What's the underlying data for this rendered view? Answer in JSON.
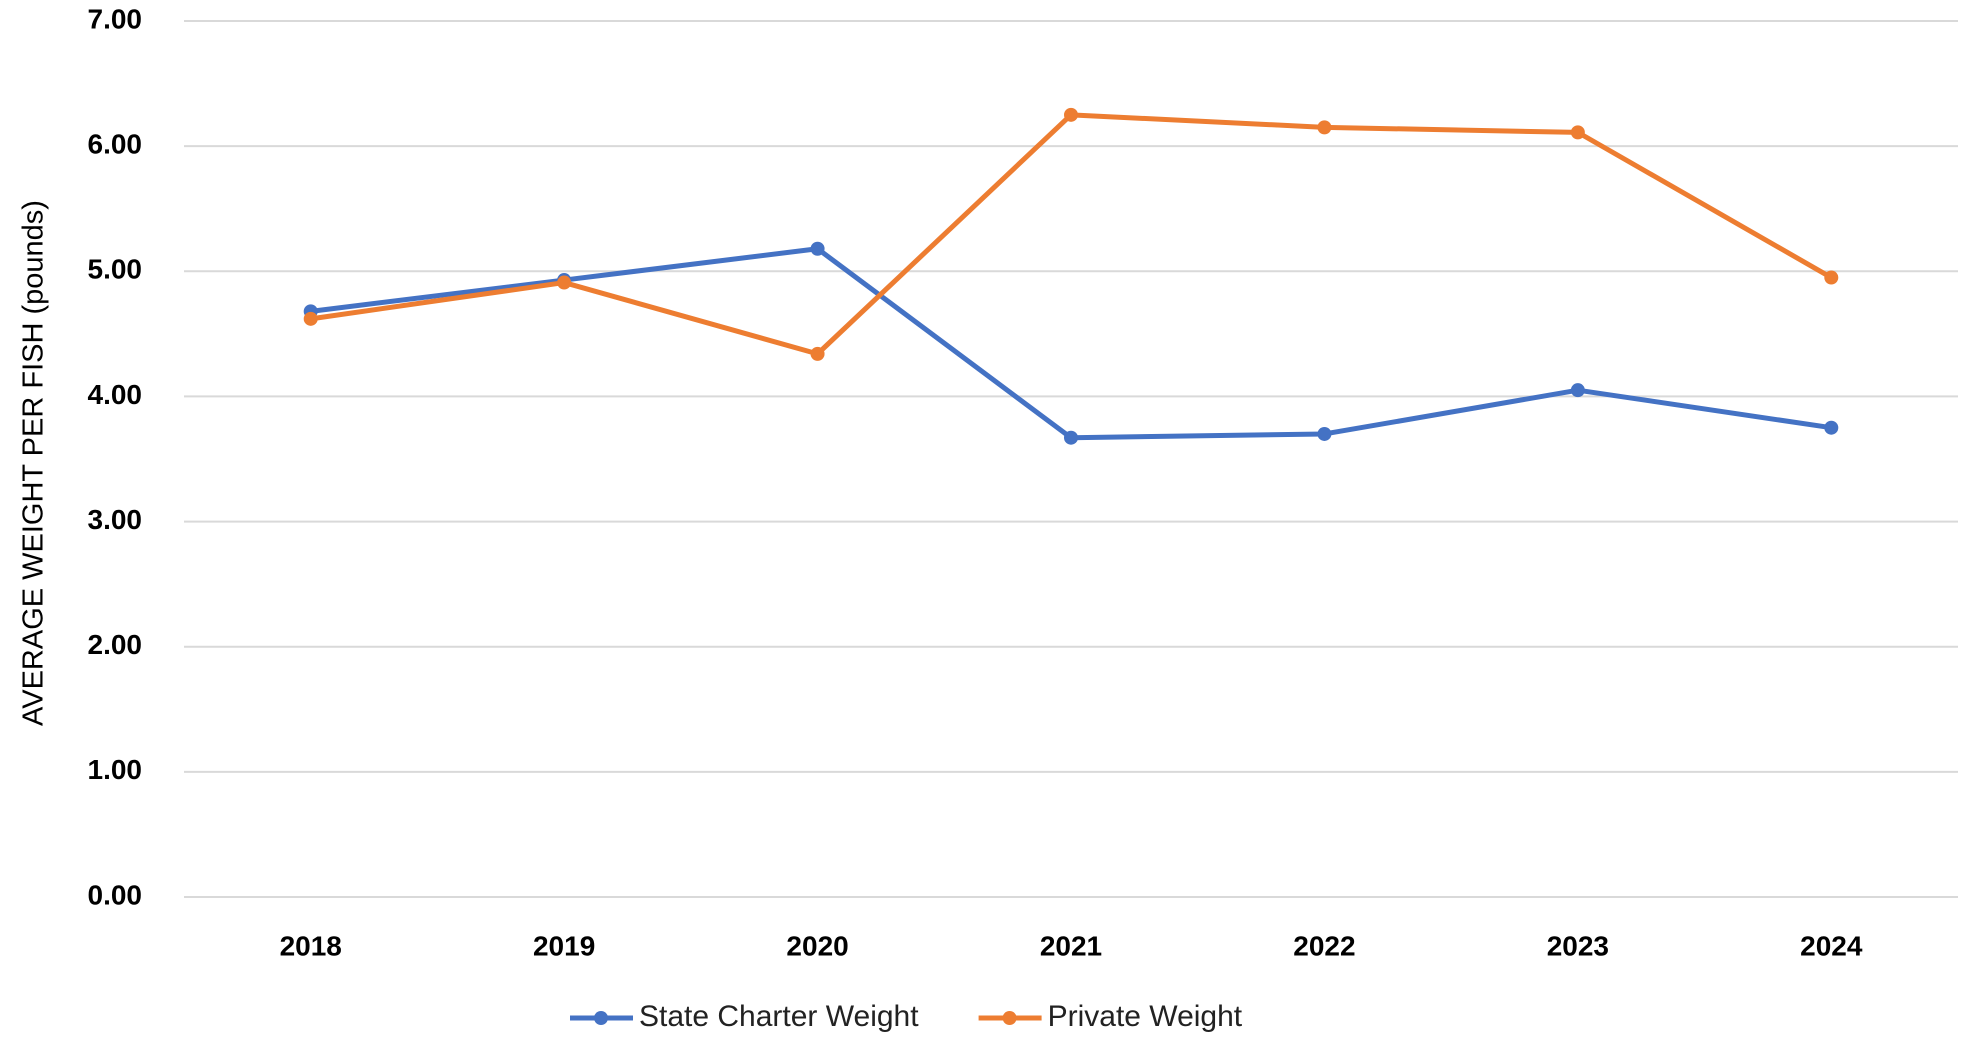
{
  "chart_data": {
    "type": "line",
    "y_label": "AVERAGE WEIGHT PER FISH (pounds)",
    "categories": [
      "2018",
      "2019",
      "2020",
      "2021",
      "2022",
      "2023",
      "2024"
    ],
    "series": [
      {
        "name": "State Charter Weight",
        "color": "#4472c4",
        "values": [
          4.68,
          4.93,
          5.18,
          3.67,
          3.7,
          4.05,
          3.75
        ]
      },
      {
        "name": "Private Weight",
        "color": "#ed7d31",
        "values": [
          4.62,
          4.91,
          4.34,
          6.25,
          6.15,
          6.11,
          4.95
        ]
      }
    ],
    "ylim": [
      0,
      7
    ],
    "yticks": [
      {
        "value": 0,
        "label": "0.00"
      },
      {
        "value": 1,
        "label": "1.00"
      },
      {
        "value": 2,
        "label": "2.00"
      },
      {
        "value": 3,
        "label": "3.00"
      },
      {
        "value": 4,
        "label": "4.00"
      },
      {
        "value": 5,
        "label": "5.00"
      },
      {
        "value": 6,
        "label": "6.00"
      },
      {
        "value": 7,
        "label": "7.00"
      }
    ],
    "grid": true,
    "legend": "bottom"
  }
}
